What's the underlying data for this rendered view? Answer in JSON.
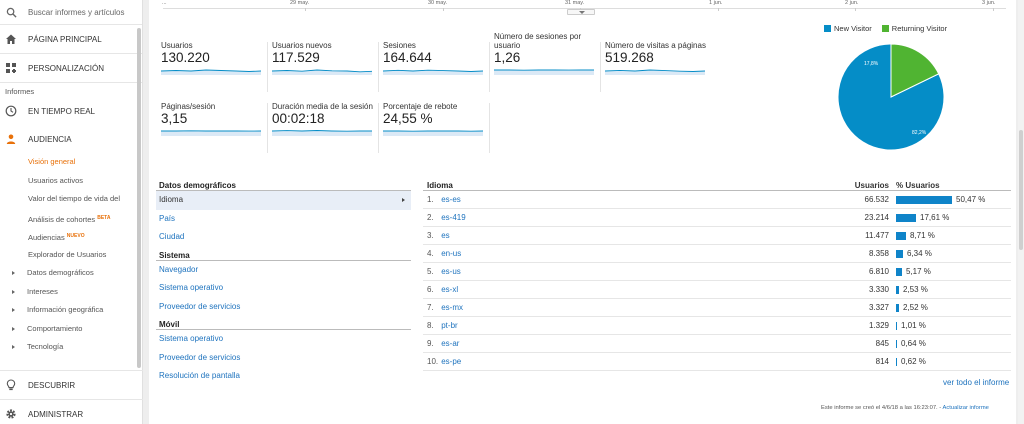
{
  "sidebar": {
    "search_placeholder": "Buscar informes y artículos",
    "home": "PÁGINA PRINCIPAL",
    "custom": "PERSONALIZACIÓN",
    "reports_header": "Informes",
    "realtime": "EN TIEMPO REAL",
    "audience": "AUDIENCIA",
    "audience_items": [
      {
        "label": "Visión general"
      },
      {
        "label": "Usuarios activos"
      },
      {
        "label": "Valor del tiempo de vida del"
      },
      {
        "label": "Análisis de cohortes",
        "badge": "BETA"
      },
      {
        "label": "Audiencias",
        "badge": "NUEVO"
      },
      {
        "label": "Explorador de Usuarios"
      }
    ],
    "expandables": [
      "Datos demográficos",
      "Intereses",
      "Información geográfica",
      "Comportamiento",
      "Tecnología"
    ],
    "discover": "DESCUBRIR",
    "admin": "ADMINISTRAR"
  },
  "timeline": {
    "labels": [
      "...",
      "29 may.",
      "30 may.",
      "31 may.",
      "1 jun.",
      "2 jun.",
      "3 jun."
    ]
  },
  "metrics": [
    {
      "label": "Usuarios",
      "value": "130.220"
    },
    {
      "label": "Usuarios nuevos",
      "value": "117.529"
    },
    {
      "label": "Sesiones",
      "value": "164.644"
    },
    {
      "label": "Número de sesiones por usuario",
      "value": "1,26"
    },
    {
      "label": "Número de visitas a páginas",
      "value": "519.268"
    },
    {
      "label": "Páginas/sesión",
      "value": "3,15"
    },
    {
      "label": "Duración media de la sesión",
      "value": "00:02:18"
    },
    {
      "label": "Porcentaje de rebote",
      "value": "24,55 %"
    }
  ],
  "pie": {
    "legend": [
      {
        "name": "New Visitor",
        "color": "#058dc7"
      },
      {
        "name": "Returning Visitor",
        "color": "#50b432"
      }
    ],
    "new_pct": 82.2,
    "returning_pct": 17.8,
    "new_label": "82,2%",
    "returning_label": "17,8%"
  },
  "dimensions": {
    "demographics_header": "Datos demográficos",
    "demographics": [
      "Idioma",
      "País",
      "Ciudad"
    ],
    "system_header": "Sistema",
    "system": [
      "Navegador",
      "Sistema operativo",
      "Proveedor de servicios"
    ],
    "mobile_header": "Móvil",
    "mobile": [
      "Sistema operativo",
      "Proveedor de servicios",
      "Resolución de pantalla"
    ]
  },
  "table": {
    "col_name": "Idioma",
    "col_users": "Usuarios",
    "col_pct": "% Usuarios",
    "rows": [
      {
        "n": "1.",
        "lang": "es-es",
        "users": "66.532",
        "pct": "50,47 %",
        "frac": 50.47
      },
      {
        "n": "2.",
        "lang": "es-419",
        "users": "23.214",
        "pct": "17,61 %",
        "frac": 17.61
      },
      {
        "n": "3.",
        "lang": "es",
        "users": "11.477",
        "pct": "8,71 %",
        "frac": 8.71
      },
      {
        "n": "4.",
        "lang": "en-us",
        "users": "8.358",
        "pct": "6,34 %",
        "frac": 6.34
      },
      {
        "n": "5.",
        "lang": "es-us",
        "users": "6.810",
        "pct": "5,17 %",
        "frac": 5.17
      },
      {
        "n": "6.",
        "lang": "es-xl",
        "users": "3.330",
        "pct": "2,53 %",
        "frac": 2.53
      },
      {
        "n": "7.",
        "lang": "es-mx",
        "users": "3.327",
        "pct": "2,52 %",
        "frac": 2.52
      },
      {
        "n": "8.",
        "lang": "pt-br",
        "users": "1.329",
        "pct": "1,01 %",
        "frac": 1.01
      },
      {
        "n": "9.",
        "lang": "es-ar",
        "users": "845",
        "pct": "0,64 %",
        "frac": 0.64
      },
      {
        "n": "10.",
        "lang": "es-pe",
        "users": "814",
        "pct": "0,62 %",
        "frac": 0.62
      }
    ],
    "view_all": "ver todo el informe"
  },
  "footer": {
    "note": "Este informe se creó el 4/6/18 a las 16:23:07. - ",
    "refresh": "Actualizar informe"
  }
}
